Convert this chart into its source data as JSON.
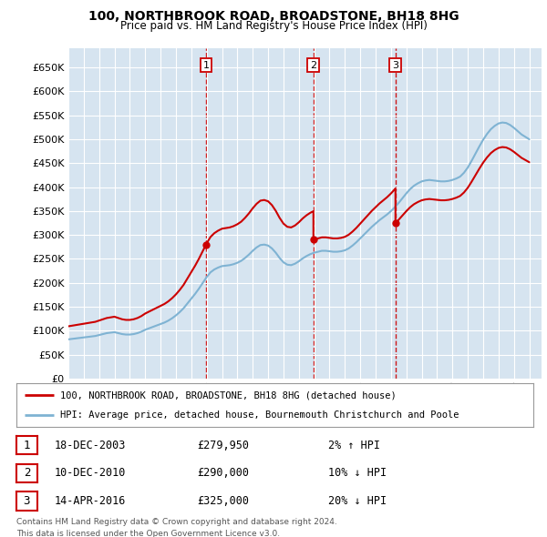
{
  "title": "100, NORTHBROOK ROAD, BROADSTONE, BH18 8HG",
  "subtitle": "Price paid vs. HM Land Registry's House Price Index (HPI)",
  "plot_bg_color": "#d6e4f0",
  "grid_color": "#ffffff",
  "red_line_color": "#cc0000",
  "blue_line_color": "#7fb3d3",
  "marker_color": "#cc0000",
  "vline_color": "#cc0000",
  "yticks": [
    0,
    50000,
    100000,
    150000,
    200000,
    250000,
    300000,
    350000,
    400000,
    450000,
    500000,
    550000,
    600000,
    650000
  ],
  "xlim_start": 1995.0,
  "xlim_end": 2025.8,
  "ylim_min": 0,
  "ylim_max": 690000,
  "transactions": [
    {
      "label": "1",
      "date": 2003.96,
      "price": 279950,
      "pct": "2%",
      "dir": "↑",
      "date_str": "18-DEC-2003"
    },
    {
      "label": "2",
      "date": 2010.95,
      "price": 290000,
      "pct": "10%",
      "dir": "↓",
      "date_str": "10-DEC-2010"
    },
    {
      "label": "3",
      "date": 2016.29,
      "price": 325000,
      "pct": "20%",
      "dir": "↓",
      "date_str": "14-APR-2016"
    }
  ],
  "legend_line1": "100, NORTHBROOK ROAD, BROADSTONE, BH18 8HG (detached house)",
  "legend_line2": "HPI: Average price, detached house, Bournemouth Christchurch and Poole",
  "footer1": "Contains HM Land Registry data © Crown copyright and database right 2024.",
  "footer2": "This data is licensed under the Open Government Licence v3.0.",
  "hpi_years": [
    1995,
    1995.25,
    1995.5,
    1995.75,
    1996,
    1996.25,
    1996.5,
    1996.75,
    1997,
    1997.25,
    1997.5,
    1997.75,
    1998,
    1998.25,
    1998.5,
    1998.75,
    1999,
    1999.25,
    1999.5,
    1999.75,
    2000,
    2000.25,
    2000.5,
    2000.75,
    2001,
    2001.25,
    2001.5,
    2001.75,
    2002,
    2002.25,
    2002.5,
    2002.75,
    2003,
    2003.25,
    2003.5,
    2003.75,
    2004,
    2004.25,
    2004.5,
    2004.75,
    2005,
    2005.25,
    2005.5,
    2005.75,
    2006,
    2006.25,
    2006.5,
    2006.75,
    2007,
    2007.25,
    2007.5,
    2007.75,
    2008,
    2008.25,
    2008.5,
    2008.75,
    2009,
    2009.25,
    2009.5,
    2009.75,
    2010,
    2010.25,
    2010.5,
    2010.75,
    2011,
    2011.25,
    2011.5,
    2011.75,
    2012,
    2012.25,
    2012.5,
    2012.75,
    2013,
    2013.25,
    2013.5,
    2013.75,
    2014,
    2014.25,
    2014.5,
    2014.75,
    2015,
    2015.25,
    2015.5,
    2015.75,
    2016,
    2016.25,
    2016.5,
    2016.75,
    2017,
    2017.25,
    2017.5,
    2017.75,
    2018,
    2018.25,
    2018.5,
    2018.75,
    2019,
    2019.25,
    2019.5,
    2019.75,
    2020,
    2020.25,
    2020.5,
    2020.75,
    2021,
    2021.25,
    2021.5,
    2021.75,
    2022,
    2022.25,
    2022.5,
    2022.75,
    2023,
    2023.25,
    2023.5,
    2023.75,
    2024,
    2024.25,
    2024.5,
    2024.75,
    2025
  ],
  "hpi_values": [
    82000,
    83000,
    84000,
    85000,
    86000,
    87000,
    88000,
    89000,
    91000,
    93000,
    95000,
    96000,
    97000,
    95000,
    93000,
    92000,
    92000,
    93000,
    95000,
    98000,
    102000,
    105000,
    108000,
    111000,
    114000,
    117000,
    121000,
    126000,
    132000,
    139000,
    147000,
    157000,
    167000,
    177000,
    188000,
    200000,
    212000,
    222000,
    228000,
    232000,
    235000,
    236000,
    237000,
    239000,
    242000,
    246000,
    252000,
    259000,
    267000,
    274000,
    279000,
    280000,
    278000,
    272000,
    263000,
    252000,
    243000,
    238000,
    237000,
    240000,
    245000,
    251000,
    256000,
    260000,
    263000,
    265000,
    267000,
    267000,
    266000,
    265000,
    265000,
    266000,
    268000,
    272000,
    278000,
    285000,
    293000,
    301000,
    309000,
    317000,
    324000,
    331000,
    337000,
    343000,
    350000,
    358000,
    367000,
    377000,
    387000,
    396000,
    403000,
    408000,
    412000,
    414000,
    415000,
    414000,
    413000,
    412000,
    412000,
    413000,
    415000,
    418000,
    422000,
    430000,
    441000,
    455000,
    470000,
    485000,
    499000,
    511000,
    521000,
    528000,
    533000,
    535000,
    534000,
    530000,
    524000,
    517000,
    510000,
    505000,
    500000
  ],
  "sale_years": [
    2003.96,
    2010.95,
    2016.29
  ],
  "sale_prices": [
    279950,
    290000,
    325000
  ]
}
